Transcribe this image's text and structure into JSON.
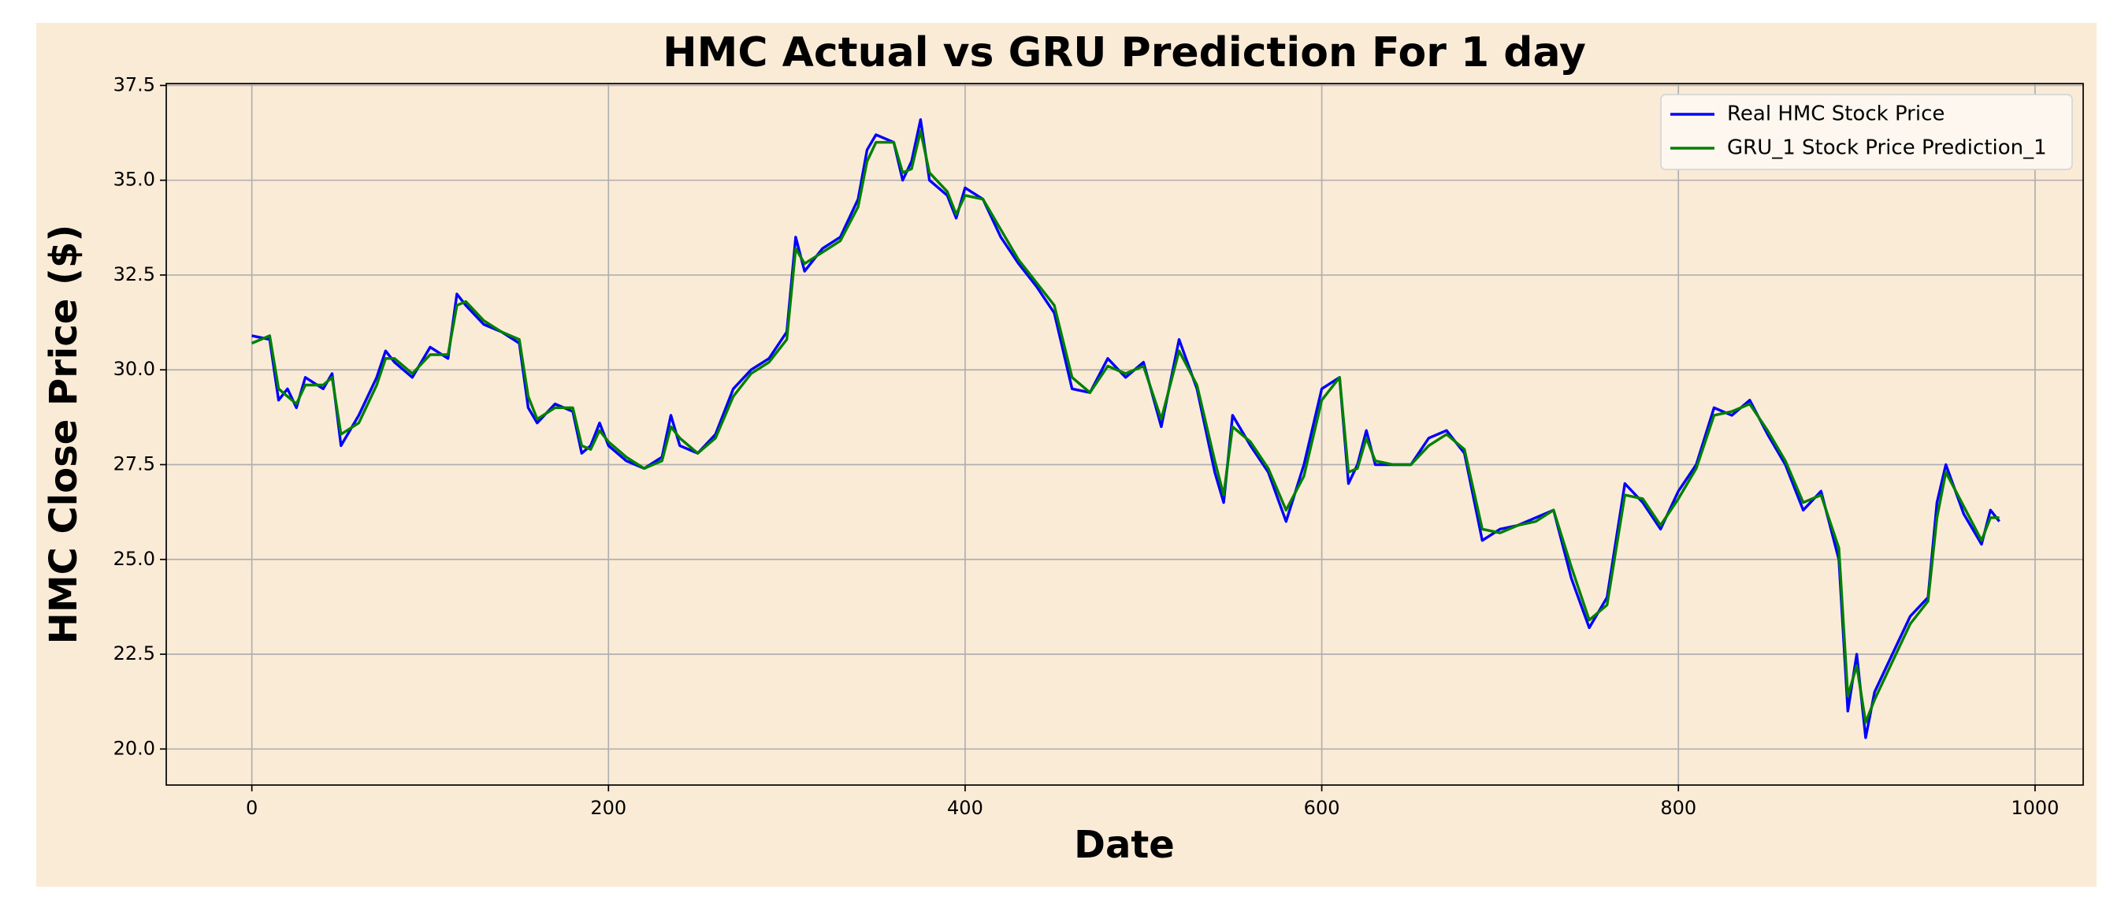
{
  "chart_data": {
    "type": "line",
    "title": "HMC Actual vs GRU Prediction For 1 day",
    "xlabel": "Date",
    "ylabel": "HMC Close Price ($)",
    "x": [
      0,
      10,
      15,
      20,
      25,
      30,
      40,
      45,
      50,
      60,
      70,
      75,
      80,
      90,
      100,
      110,
      115,
      120,
      130,
      140,
      150,
      155,
      160,
      170,
      180,
      185,
      190,
      195,
      200,
      210,
      220,
      230,
      235,
      240,
      250,
      260,
      270,
      280,
      290,
      300,
      305,
      310,
      320,
      330,
      340,
      345,
      350,
      360,
      365,
      370,
      375,
      380,
      390,
      395,
      400,
      410,
      420,
      430,
      440,
      450,
      460,
      470,
      480,
      490,
      500,
      510,
      520,
      530,
      540,
      545,
      550,
      560,
      570,
      580,
      590,
      600,
      610,
      615,
      620,
      625,
      630,
      640,
      650,
      660,
      670,
      680,
      690,
      700,
      710,
      720,
      730,
      740,
      750,
      760,
      770,
      780,
      790,
      800,
      810,
      820,
      830,
      840,
      850,
      860,
      870,
      880,
      890,
      895,
      900,
      905,
      910,
      920,
      930,
      940,
      945,
      950,
      960,
      970,
      975,
      980
    ],
    "series": [
      {
        "name": "Real HMC Stock Price",
        "color": "#0000ff",
        "values": [
          30.9,
          30.8,
          29.2,
          29.5,
          29.0,
          29.8,
          29.5,
          29.9,
          28.0,
          28.8,
          29.8,
          30.5,
          30.2,
          29.8,
          30.6,
          30.3,
          32.0,
          31.7,
          31.2,
          31.0,
          30.7,
          29.0,
          28.6,
          29.1,
          28.9,
          27.8,
          28.0,
          28.6,
          28.0,
          27.6,
          27.4,
          27.7,
          28.8,
          28.0,
          27.8,
          28.3,
          29.5,
          30.0,
          30.3,
          31.0,
          33.5,
          32.6,
          33.2,
          33.5,
          34.5,
          35.8,
          36.2,
          36.0,
          35.0,
          35.5,
          36.6,
          35.0,
          34.6,
          34.0,
          34.8,
          34.5,
          33.5,
          32.8,
          32.2,
          31.5,
          29.5,
          29.4,
          30.3,
          29.8,
          30.2,
          28.5,
          30.8,
          29.5,
          27.3,
          26.5,
          28.8,
          28.0,
          27.3,
          26.0,
          27.5,
          29.5,
          29.8,
          27.0,
          27.5,
          28.4,
          27.5,
          27.5,
          27.5,
          28.2,
          28.4,
          27.8,
          25.5,
          25.8,
          25.9,
          26.1,
          26.3,
          24.5,
          23.2,
          24.0,
          27.0,
          26.5,
          25.8,
          26.8,
          27.5,
          29.0,
          28.8,
          29.2,
          28.3,
          27.5,
          26.3,
          26.8,
          25.0,
          21.0,
          22.5,
          20.3,
          21.5,
          22.5,
          23.5,
          24.0,
          26.5,
          27.5,
          26.2,
          25.4,
          26.3,
          26.0
        ]
      },
      {
        "name": "GRU_1 Stock Price Prediction_1",
        "color": "#008000",
        "values": [
          30.7,
          30.9,
          29.5,
          29.3,
          29.1,
          29.6,
          29.6,
          29.8,
          28.3,
          28.6,
          29.6,
          30.3,
          30.3,
          29.9,
          30.4,
          30.4,
          31.7,
          31.8,
          31.3,
          31.0,
          30.8,
          29.3,
          28.7,
          29.0,
          29.0,
          28.0,
          27.9,
          28.4,
          28.1,
          27.7,
          27.4,
          27.6,
          28.5,
          28.2,
          27.8,
          28.2,
          29.3,
          29.9,
          30.2,
          30.8,
          33.2,
          32.8,
          33.1,
          33.4,
          34.3,
          35.5,
          36.0,
          36.0,
          35.2,
          35.3,
          36.3,
          35.2,
          34.7,
          34.1,
          34.6,
          34.5,
          33.7,
          32.9,
          32.3,
          31.7,
          29.8,
          29.4,
          30.1,
          29.9,
          30.1,
          28.7,
          30.5,
          29.6,
          27.6,
          26.7,
          28.5,
          28.1,
          27.4,
          26.3,
          27.2,
          29.2,
          29.8,
          27.3,
          27.4,
          28.2,
          27.6,
          27.5,
          27.5,
          28.0,
          28.3,
          27.9,
          25.8,
          25.7,
          25.9,
          26.0,
          26.3,
          24.8,
          23.4,
          23.8,
          26.7,
          26.6,
          25.9,
          26.6,
          27.4,
          28.8,
          28.9,
          29.1,
          28.4,
          27.6,
          26.5,
          26.7,
          25.3,
          21.4,
          22.2,
          20.7,
          21.3,
          22.3,
          23.3,
          23.9,
          26.1,
          27.3,
          26.4,
          25.5,
          26.1,
          26.1
        ]
      }
    ],
    "xlim": [
      -48,
      1027
    ],
    "ylim": [
      19.05,
      37.55
    ],
    "xticks": [
      0,
      200,
      400,
      600,
      800,
      1000
    ],
    "yticks": [
      {
        "value": 20.0,
        "label": "20.0"
      },
      22.5,
      {
        "value": 25.0,
        "label": "25.0"
      },
      27.5,
      {
        "value": 30.0,
        "label": "30.0"
      },
      32.5,
      {
        "value": 35.0,
        "label": "35.0"
      },
      37.5
    ],
    "grid": true,
    "legend": "upper right"
  }
}
